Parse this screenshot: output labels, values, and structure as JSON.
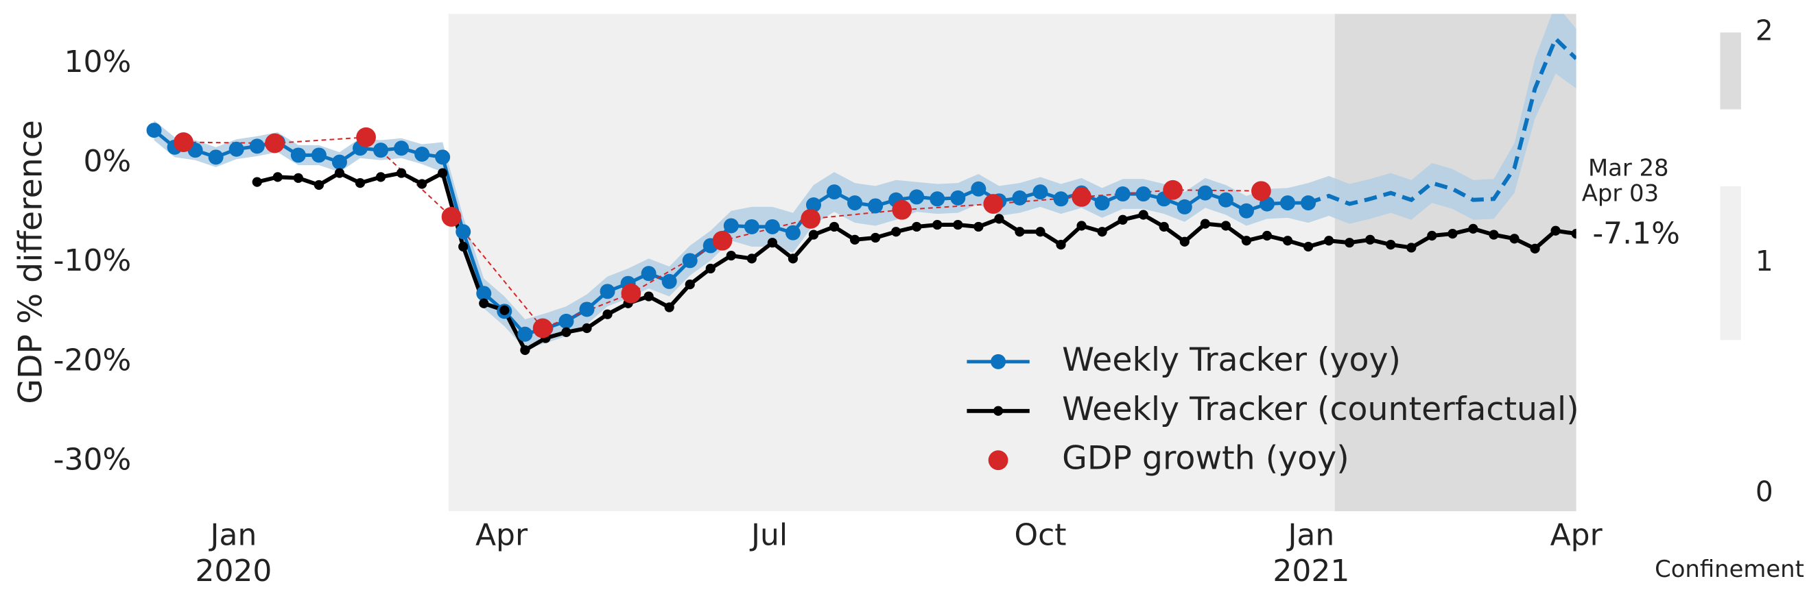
{
  "chart_data": {
    "type": "line",
    "ylabel": "GDP % difference",
    "xlim": [
      "2019-11-30",
      "2021-04-01"
    ],
    "ylim": [
      -35,
      15
    ],
    "xticks": [
      {
        "value": "2020-01-01",
        "label": "Jan"
      },
      {
        "value": "2020-04-01",
        "label": "Apr"
      },
      {
        "value": "2020-07-01",
        "label": "Jul"
      },
      {
        "value": "2020-10-01",
        "label": "Oct"
      },
      {
        "value": "2021-01-01",
        "label": "Jan"
      },
      {
        "value": "2021-04-01",
        "label": "Apr"
      }
    ],
    "year_labels": [
      {
        "value": "2020-01-01",
        "label": "2020"
      },
      {
        "value": "2021-01-01",
        "label": "2021"
      }
    ],
    "yticks": [
      {
        "value": 10,
        "label": "10%"
      },
      {
        "value": 0,
        "label": "0%"
      },
      {
        "value": -10,
        "label": "-10%"
      },
      {
        "value": -20,
        "label": "-20%"
      },
      {
        "value": -30,
        "label": "-30%"
      }
    ],
    "x": [
      "2019-12-05",
      "2019-12-12",
      "2019-12-19",
      "2019-12-26",
      "2020-01-02",
      "2020-01-09",
      "2020-01-16",
      "2020-01-23",
      "2020-01-30",
      "2020-02-06",
      "2020-02-13",
      "2020-02-20",
      "2020-02-27",
      "2020-03-05",
      "2020-03-12",
      "2020-03-19",
      "2020-03-26",
      "2020-04-02",
      "2020-04-09",
      "2020-04-16",
      "2020-04-23",
      "2020-04-30",
      "2020-05-07",
      "2020-05-14",
      "2020-05-21",
      "2020-05-28",
      "2020-06-04",
      "2020-06-11",
      "2020-06-18",
      "2020-06-25",
      "2020-07-02",
      "2020-07-09",
      "2020-07-16",
      "2020-07-23",
      "2020-07-30",
      "2020-08-06",
      "2020-08-13",
      "2020-08-20",
      "2020-08-27",
      "2020-09-03",
      "2020-09-10",
      "2020-09-17",
      "2020-09-24",
      "2020-10-01",
      "2020-10-08",
      "2020-10-15",
      "2020-10-22",
      "2020-10-29",
      "2020-11-05",
      "2020-11-12",
      "2020-11-19",
      "2020-11-26",
      "2020-12-03",
      "2020-12-10",
      "2020-12-17",
      "2020-12-24",
      "2020-12-31",
      "2021-01-07",
      "2021-01-14",
      "2021-01-21",
      "2021-01-28",
      "2021-02-04",
      "2021-02-11",
      "2021-02-18",
      "2021-02-25",
      "2021-03-04",
      "2021-03-11",
      "2021-03-18",
      "2021-03-25",
      "2021-04-01"
    ],
    "series": [
      {
        "name": "Weekly Tracker (yoy)",
        "color": "#0a72bf",
        "band_color": "#b3cfe3",
        "values": [
          3.3,
          1.6,
          1.3,
          0.6,
          1.4,
          1.7,
          2.1,
          0.8,
          0.8,
          0.1,
          1.5,
          1.3,
          1.5,
          0.9,
          0.6,
          -6.9,
          -13.1,
          -14.9,
          -17.2,
          -16.6,
          -15.9,
          -14.7,
          -12.9,
          -12.1,
          -11.1,
          -11.9,
          -9.8,
          -8.3,
          -6.3,
          -6.4,
          -6.4,
          -7.0,
          -4.2,
          -2.9,
          -4.0,
          -4.3,
          -3.7,
          -3.4,
          -3.6,
          -3.5,
          -2.6,
          -3.8,
          -3.5,
          -2.9,
          -3.6,
          -3.0,
          -4.0,
          -3.1,
          -3.1,
          -3.6,
          -4.4,
          -3.0,
          -3.7,
          -4.8,
          -4.1,
          -4.0,
          -4.0,
          null,
          null,
          null,
          null,
          null,
          null,
          null,
          null,
          null,
          null,
          null,
          null,
          null
        ],
        "forecast": [
          null,
          null,
          null,
          null,
          null,
          null,
          null,
          null,
          null,
          null,
          null,
          null,
          null,
          null,
          null,
          null,
          null,
          null,
          null,
          null,
          null,
          null,
          null,
          null,
          null,
          null,
          null,
          null,
          null,
          null,
          null,
          null,
          null,
          null,
          null,
          null,
          null,
          null,
          null,
          null,
          null,
          null,
          null,
          null,
          null,
          null,
          null,
          null,
          null,
          null,
          null,
          null,
          null,
          null,
          null,
          null,
          -4.0,
          -3.3,
          -4.1,
          -3.6,
          -3.0,
          -3.7,
          -2.0,
          -2.6,
          -3.7,
          -3.6,
          -0.5,
          7.5,
          12.5,
          10.5
        ],
        "lower": [
          2.3,
          0.6,
          0.3,
          -0.4,
          0.4,
          0.7,
          1.1,
          -0.2,
          -0.2,
          -0.9,
          0.5,
          0.3,
          0.5,
          -0.1,
          -0.9,
          -8.4,
          -14.6,
          -16.4,
          -18.7,
          -18.1,
          -17.4,
          -16.2,
          -14.4,
          -13.6,
          -12.6,
          -13.4,
          -11.3,
          -9.8,
          -7.8,
          -8.4,
          -8.4,
          -9.0,
          -6.2,
          -4.9,
          -6.0,
          -6.3,
          -5.7,
          -4.9,
          -5.1,
          -5.0,
          -4.1,
          -5.3,
          -5.0,
          -4.4,
          -5.1,
          -4.5,
          -5.5,
          -4.6,
          -4.6,
          -5.1,
          -5.9,
          -4.5,
          -5.2,
          -6.3,
          -5.6,
          -5.5,
          -6.0,
          -5.3,
          -6.1,
          -5.6,
          -5.0,
          -5.7,
          -4.0,
          -4.6,
          -5.7,
          -5.6,
          -3.0,
          4.5,
          9.0,
          7.5
        ],
        "upper": [
          4.3,
          2.6,
          2.3,
          1.6,
          2.4,
          2.7,
          3.1,
          1.8,
          1.8,
          1.1,
          2.5,
          2.3,
          2.5,
          1.9,
          2.1,
          -5.4,
          -11.6,
          -13.4,
          -15.7,
          -15.1,
          -14.4,
          -13.2,
          -11.4,
          -10.6,
          -9.6,
          -10.4,
          -8.3,
          -6.8,
          -4.8,
          -4.4,
          -4.4,
          -5.0,
          -2.2,
          -0.9,
          -2.0,
          -2.3,
          -1.7,
          -1.9,
          -2.1,
          -2.0,
          -1.1,
          -2.3,
          -2.0,
          -1.4,
          -2.1,
          -1.5,
          -2.5,
          -1.6,
          -1.6,
          -2.1,
          -2.9,
          -1.5,
          -2.2,
          -3.3,
          -2.6,
          -2.5,
          -2.0,
          -1.3,
          -2.1,
          -1.6,
          -1.0,
          -1.7,
          0.0,
          -0.6,
          -1.7,
          -1.6,
          2.0,
          10.5,
          16.0,
          13.5
        ]
      },
      {
        "name": "Weekly Tracker (counterfactual)",
        "color": "#000000",
        "values": [
          null,
          null,
          null,
          null,
          null,
          -1.9,
          -1.4,
          -1.5,
          -2.2,
          -1.0,
          -2.0,
          -1.4,
          -1.0,
          -2.1,
          -1.0,
          -8.4,
          -14.1,
          -14.8,
          -18.8,
          -17.6,
          -17.0,
          -16.6,
          -15.2,
          -14.1,
          -13.4,
          -14.5,
          -12.2,
          -10.6,
          -9.3,
          -9.6,
          -8.0,
          -9.6,
          -7.2,
          -6.4,
          -7.7,
          -7.5,
          -6.9,
          -6.4,
          -6.2,
          -6.2,
          -6.4,
          -5.6,
          -6.9,
          -6.9,
          -8.2,
          -6.3,
          -6.9,
          -5.7,
          -5.2,
          -6.4,
          -7.9,
          -6.1,
          -6.3,
          -7.8,
          -7.3,
          -7.8,
          -8.4,
          -7.8,
          -8.0,
          -7.7,
          -8.2,
          -8.5,
          -7.3,
          -7.1,
          -6.6,
          -7.2,
          -7.6,
          -8.6,
          -6.8,
          -7.1
        ]
      },
      {
        "name": "GDP growth (yoy)",
        "color": "#d62728",
        "x": [
          "2019-12-15",
          "2020-01-15",
          "2020-02-15",
          "2020-03-15",
          "2020-04-15",
          "2020-05-15",
          "2020-06-15",
          "2020-07-15",
          "2020-08-15",
          "2020-09-15",
          "2020-10-15",
          "2020-11-15",
          "2020-12-15"
        ],
        "values": [
          2.1,
          2.0,
          2.6,
          -5.4,
          -16.6,
          -13.1,
          -7.8,
          -5.6,
          -4.7,
          -4.1,
          -3.4,
          -2.7,
          -2.8
        ]
      }
    ],
    "annotations": [
      "Mar 28",
      "Apr 03",
      "-7.1%"
    ],
    "confinement": {
      "label": "Confinement",
      "lim": [
        0,
        2
      ],
      "ticks": [
        0,
        1,
        2
      ],
      "levels": [
        {
          "value": 1,
          "color": "#f0f0f0"
        },
        {
          "value": 2,
          "color": "#dcdcdc"
        }
      ],
      "periods": [
        {
          "start": "2020-03-14",
          "end": "2021-01-09",
          "level": 1
        },
        {
          "start": "2021-01-09",
          "end": "2021-04-01",
          "level": 2
        }
      ]
    }
  }
}
